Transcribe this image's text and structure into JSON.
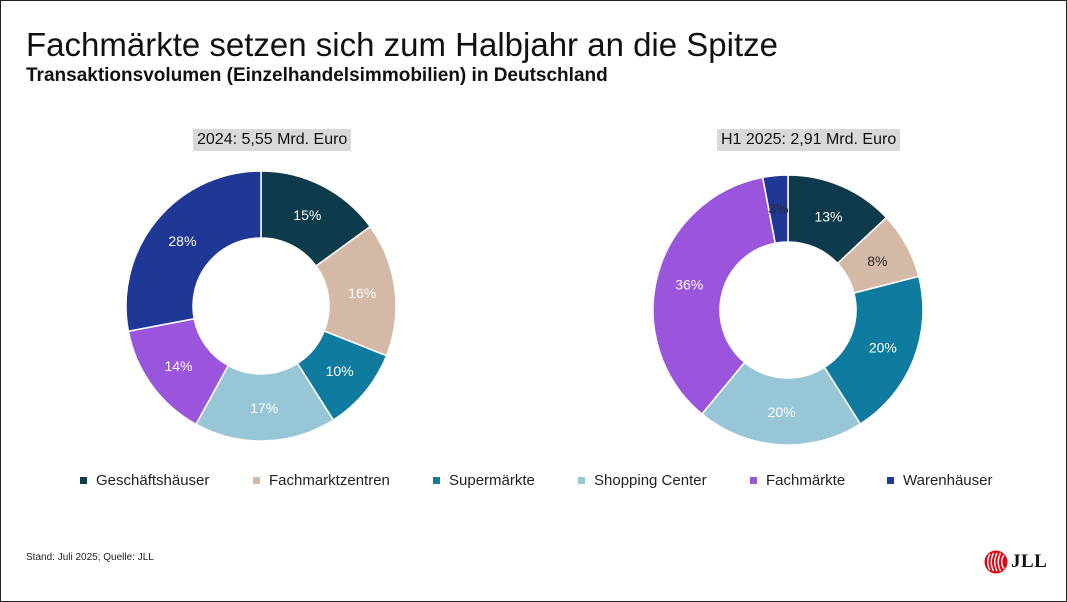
{
  "header": {
    "title": "Fachmärkte setzen sich zum Halbjahr an die Spitze",
    "subtitle": "Transaktionsvolumen (Einzelhandelsimmobilien) in Deutschland"
  },
  "chart_data": [
    {
      "type": "pie",
      "variant": "donut",
      "title": "2024: 5,55 Mrd. Euro",
      "categories": [
        "Geschäftshäuser",
        "Fachmarktzentren",
        "Supermärkte",
        "Shopping Center",
        "Fachmärkte",
        "Warenhäuser"
      ],
      "values": [
        15,
        16,
        10,
        17,
        14,
        28
      ],
      "labels": [
        "15%",
        "16%",
        "10%",
        "17%",
        "14%",
        "28%"
      ],
      "unit": "%"
    },
    {
      "type": "pie",
      "variant": "donut",
      "title": "H1 2025: 2,91 Mrd. Euro",
      "categories": [
        "Geschäftshäuser",
        "Fachmarktzentren",
        "Supermärkte",
        "Shopping Center",
        "Fachmärkte",
        "Warenhäuser"
      ],
      "values": [
        13,
        8,
        20,
        20,
        36,
        3
      ],
      "labels": [
        "13%",
        "8%",
        "20%",
        "20%",
        "36%",
        "3%"
      ],
      "unit": "%"
    }
  ],
  "legend": {
    "position": "bottom",
    "items": [
      {
        "label": "Geschäftshäuser",
        "color": "#0d3b4c"
      },
      {
        "label": "Fachmarktzentren",
        "color": "#d4baa6"
      },
      {
        "label": "Supermärkte",
        "color": "#0f7b9e"
      },
      {
        "label": "Shopping Center",
        "color": "#97c6d6"
      },
      {
        "label": "Fachmärkte",
        "color": "#9a55dc"
      },
      {
        "label": "Warenhäuser",
        "color": "#1f3896"
      }
    ]
  },
  "colors": {
    "label_light": "#ffffff",
    "label_dark": "#2a2a2a"
  },
  "footer": {
    "source": "Stand: Juli 2025; Quelle: JLL"
  },
  "logo": {
    "text": "JLL",
    "icon": "jll-logo-icon"
  }
}
